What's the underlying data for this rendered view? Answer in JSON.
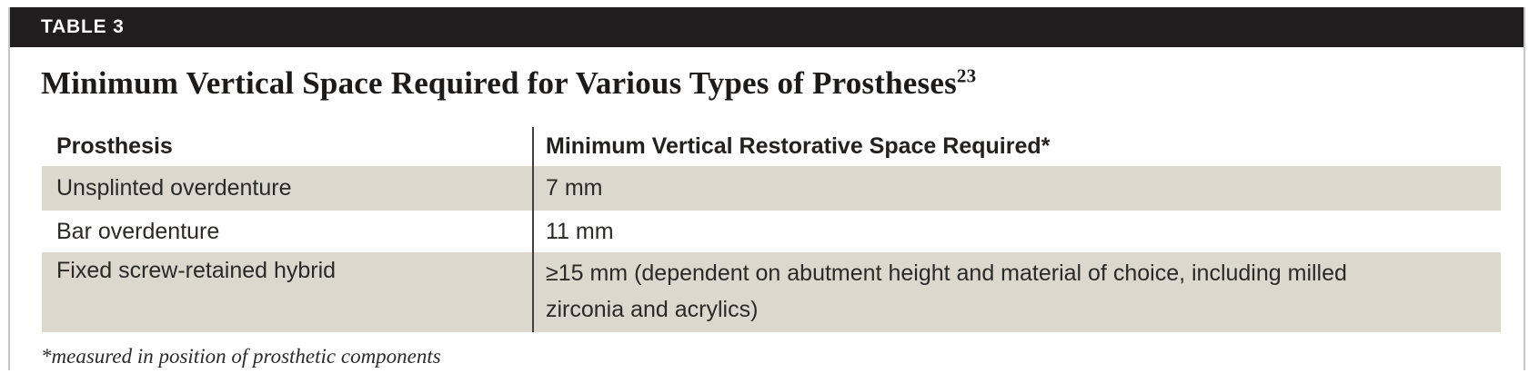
{
  "label": "TABLE 3",
  "title": {
    "text": "Minimum Vertical Space Required for Various Types of Prostheses",
    "superscript": "23"
  },
  "table": {
    "columns": [
      "Prosthesis",
      "Minimum Vertical Restorative Space Required*"
    ],
    "rows": [
      {
        "prosthesis": "Unsplinted overdenture",
        "space": "7 mm"
      },
      {
        "prosthesis": "Bar overdenture",
        "space": "11 mm"
      },
      {
        "prosthesis": "Fixed screw-retained hybrid",
        "space": "≥15 mm (dependent on abutment height and material of choice, including milled zirconia and acrylics)"
      }
    ]
  },
  "footnote": "*measured in position of prosthetic components",
  "colors": {
    "label_bar": "#1F1D1E",
    "shaded_row": "#DDD8CE",
    "column_divider": "#413F40",
    "frame_border": "#C6C6C6"
  }
}
